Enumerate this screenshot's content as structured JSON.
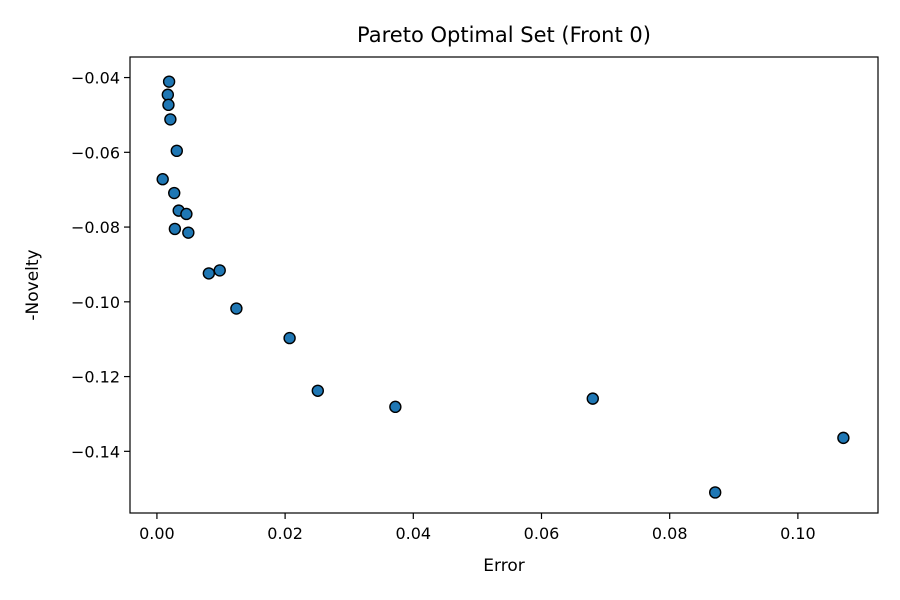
{
  "chart_data": {
    "type": "scatter",
    "title": "Pareto Optimal Set (Front 0)",
    "xlabel": "Error",
    "ylabel": "-Novelty",
    "xlim": [
      -0.0042,
      0.1125
    ],
    "ylim": [
      -0.1565,
      -0.0345
    ],
    "grid": false,
    "marker_color": "#1f77b4",
    "marker_edge_color": "#000000",
    "x_ticks": [
      {
        "value": 0.0,
        "label": "0.00"
      },
      {
        "value": 0.02,
        "label": "0.02"
      },
      {
        "value": 0.04,
        "label": "0.04"
      },
      {
        "value": 0.06,
        "label": "0.06"
      },
      {
        "value": 0.08,
        "label": "0.08"
      },
      {
        "value": 0.1,
        "label": "0.10"
      }
    ],
    "y_ticks": [
      {
        "value": -0.04,
        "label": "−0.04"
      },
      {
        "value": -0.06,
        "label": "−0.06"
      },
      {
        "value": -0.08,
        "label": "−0.08"
      },
      {
        "value": -0.1,
        "label": "−0.10"
      },
      {
        "value": -0.12,
        "label": "−0.12"
      },
      {
        "value": -0.14,
        "label": "−0.14"
      }
    ],
    "points": [
      {
        "x": 0.0019,
        "y": -0.0411
      },
      {
        "x": 0.0017,
        "y": -0.0446
      },
      {
        "x": 0.0018,
        "y": -0.0473
      },
      {
        "x": 0.0021,
        "y": -0.0512
      },
      {
        "x": 0.0031,
        "y": -0.0596
      },
      {
        "x": 0.0009,
        "y": -0.0672
      },
      {
        "x": 0.0027,
        "y": -0.0709
      },
      {
        "x": 0.0034,
        "y": -0.0756
      },
      {
        "x": 0.0046,
        "y": -0.0765
      },
      {
        "x": 0.0028,
        "y": -0.0805
      },
      {
        "x": 0.0049,
        "y": -0.0815
      },
      {
        "x": 0.0081,
        "y": -0.0924
      },
      {
        "x": 0.0098,
        "y": -0.0916
      },
      {
        "x": 0.0124,
        "y": -0.1018
      },
      {
        "x": 0.0207,
        "y": -0.1097
      },
      {
        "x": 0.0251,
        "y": -0.1238
      },
      {
        "x": 0.0372,
        "y": -0.1281
      },
      {
        "x": 0.068,
        "y": -0.1259
      },
      {
        "x": 0.0871,
        "y": -0.151
      },
      {
        "x": 0.1071,
        "y": -0.1364
      }
    ]
  }
}
